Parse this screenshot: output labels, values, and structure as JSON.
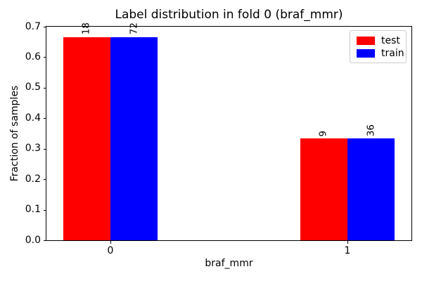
{
  "figure": {
    "title": "Label distribution in fold 0 (braf_mmr)",
    "xlabel": "braf_mmr",
    "ylabel": "Fraction of samples"
  },
  "legend": {
    "items": [
      {
        "label": "test",
        "color": "#ff0000"
      },
      {
        "label": "train",
        "color": "#0000ff"
      }
    ]
  },
  "chart_data": {
    "type": "bar",
    "title": "Label distribution in fold 0 (braf_mmr)",
    "xlabel": "braf_mmr",
    "ylabel": "Fraction of samples",
    "categories": [
      "0",
      "1"
    ],
    "series": [
      {
        "name": "test",
        "color": "#ff0000",
        "values": [
          0.6667,
          0.3333
        ],
        "bar_labels": [
          "18",
          "9"
        ]
      },
      {
        "name": "train",
        "color": "#0000ff",
        "values": [
          0.6667,
          0.3333
        ],
        "bar_labels": [
          "72",
          "36"
        ]
      }
    ],
    "bar_width": 0.2,
    "ylim": [
      0.0,
      0.7
    ],
    "xlim": [
      -0.27,
      1.27
    ],
    "yticks": [
      "0.0",
      "0.1",
      "0.2",
      "0.3",
      "0.4",
      "0.5",
      "0.6",
      "0.7"
    ],
    "grid": false,
    "legend_position": "upper right"
  }
}
